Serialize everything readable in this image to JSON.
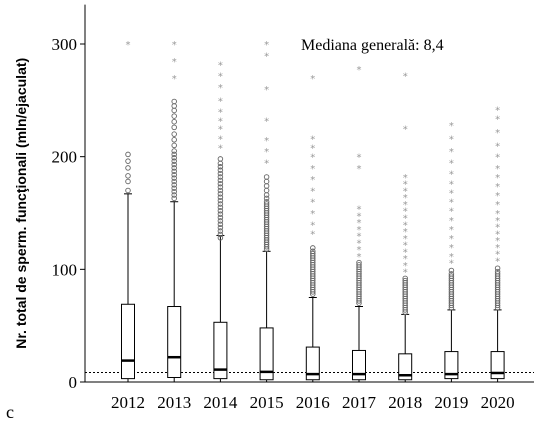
{
  "chart_data": {
    "type": "boxplot",
    "ylabel": "Nr. total de sperm. funcţionali (mln/ejaculat)",
    "annotation": "Mediana generală: 8,4",
    "panel_label": "c",
    "reference_line": 8.4,
    "ylim": [
      0,
      335
    ],
    "yticks": [
      0,
      100,
      200,
      300
    ],
    "categories": [
      "2012",
      "2013",
      "2014",
      "2015",
      "2016",
      "2017",
      "2018",
      "2019",
      "2020"
    ],
    "boxes": [
      {
        "q1": 3,
        "median": 19,
        "q3": 69,
        "whisker_high": 167,
        "outliers": [
          170,
          178,
          183,
          190,
          196,
          202
        ],
        "extremes": [
          300
        ]
      },
      {
        "q1": 4,
        "median": 22,
        "q3": 67,
        "whisker_high": 160,
        "outliers": [
          163,
          166,
          169,
          172,
          175,
          178,
          181,
          184,
          187,
          190,
          193,
          196,
          199,
          202,
          205,
          210,
          215,
          220,
          226,
          231,
          236,
          241,
          245,
          249
        ],
        "extremes": [
          270,
          285,
          300
        ]
      },
      {
        "q1": 3,
        "median": 11,
        "q3": 53,
        "whisker_high": 130,
        "outliers": [
          128,
          131,
          134,
          137,
          140,
          143,
          146,
          149,
          152,
          155,
          158,
          161,
          164,
          167,
          170,
          173,
          176,
          179,
          182,
          185,
          188,
          191,
          194,
          198
        ],
        "extremes": [
          208,
          216,
          225,
          232,
          240,
          250,
          262,
          272,
          282
        ]
      },
      {
        "q1": 2,
        "median": 9,
        "q3": 48,
        "whisker_high": 116,
        "outliers": [
          118,
          120,
          122,
          124,
          126,
          128,
          130,
          132,
          134,
          136,
          138,
          140,
          142,
          144,
          146,
          148,
          150,
          152,
          154,
          156,
          158,
          160,
          163,
          166,
          170,
          174,
          178,
          182
        ],
        "extremes": [
          195,
          205,
          215,
          232,
          260,
          290,
          300
        ]
      },
      {
        "q1": 2,
        "median": 7,
        "q3": 31,
        "whisker_high": 75,
        "outliers": [
          78,
          80,
          82,
          84,
          86,
          88,
          90,
          92,
          94,
          96,
          98,
          100,
          102,
          104,
          106,
          108,
          110,
          112,
          114,
          116,
          119
        ],
        "extremes": [
          132,
          140,
          150,
          160,
          170,
          180,
          190,
          200,
          208,
          216,
          270
        ]
      },
      {
        "q1": 2,
        "median": 7,
        "q3": 28,
        "whisker_high": 67,
        "outliers": [
          70,
          72,
          74,
          76,
          78,
          80,
          82,
          84,
          86,
          88,
          90,
          92,
          94,
          96,
          98,
          100,
          102,
          104,
          106
        ],
        "extremes": [
          112,
          118,
          124,
          130,
          136,
          142,
          148,
          154,
          190,
          200,
          278
        ]
      },
      {
        "q1": 2,
        "median": 6,
        "q3": 25,
        "whisker_high": 60,
        "outliers": [
          62,
          64,
          66,
          68,
          70,
          72,
          74,
          76,
          78,
          80,
          82,
          84,
          86,
          88,
          90,
          92
        ],
        "extremes": [
          98,
          104,
          110,
          116,
          122,
          128,
          134,
          140,
          146,
          152,
          158,
          164,
          170,
          176,
          182,
          225,
          272
        ]
      },
      {
        "q1": 3,
        "median": 7,
        "q3": 27,
        "whisker_high": 64,
        "outliers": [
          66,
          68,
          70,
          72,
          74,
          76,
          78,
          80,
          82,
          84,
          86,
          88,
          90,
          92,
          94,
          96,
          99
        ],
        "extremes": [
          106,
          112,
          120,
          128,
          136,
          144,
          152,
          160,
          168,
          176,
          185,
          195,
          205,
          216,
          228
        ]
      },
      {
        "q1": 3,
        "median": 8,
        "q3": 27,
        "whisker_high": 64,
        "outliers": [
          66,
          68,
          70,
          72,
          74,
          76,
          78,
          80,
          82,
          84,
          86,
          88,
          90,
          92,
          94,
          96,
          98,
          101
        ],
        "extremes": [
          108,
          114,
          120,
          126,
          132,
          138,
          144,
          150,
          158,
          166,
          174,
          182,
          190,
          200,
          210,
          222,
          234,
          242
        ]
      }
    ]
  }
}
